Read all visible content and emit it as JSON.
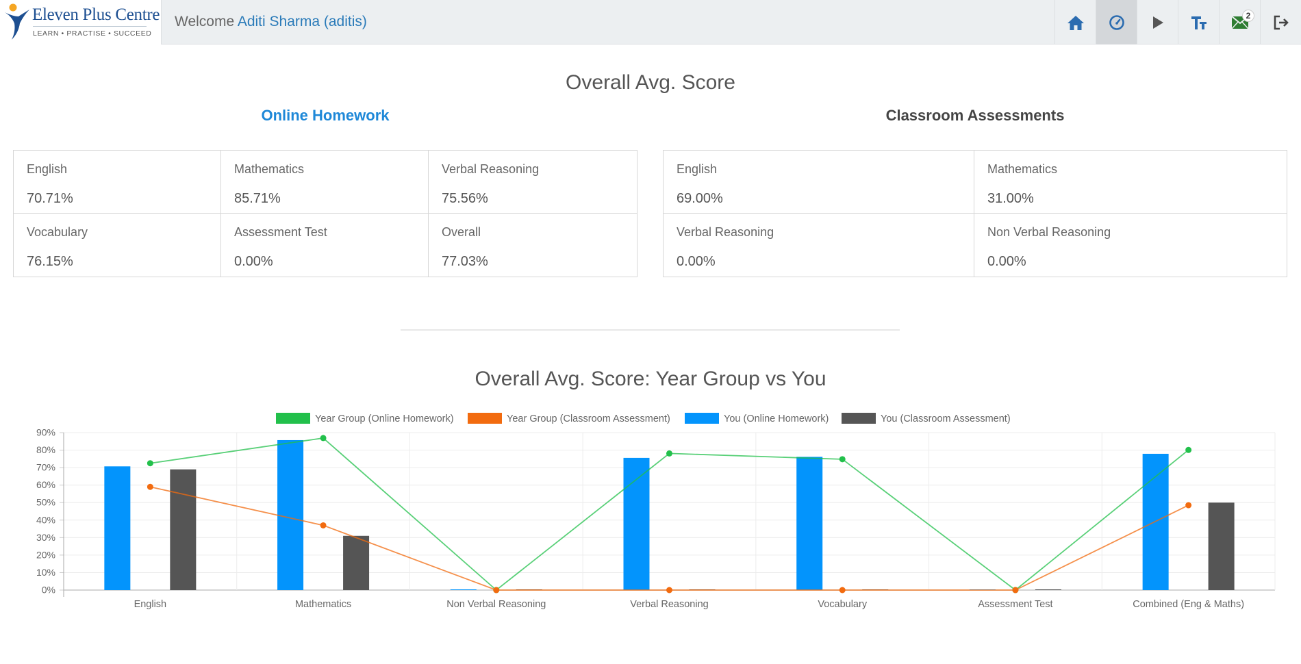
{
  "header": {
    "logo": {
      "name": "Eleven Plus Centre",
      "tagline": "LEARN  •  PRACTISE  •  SUCCEED"
    },
    "welcome_prefix": "Welcome",
    "user_name": "Aditi Sharma (aditis)",
    "nav": [
      {
        "icon": "home-icon",
        "active": false,
        "color": "#2b6cb0"
      },
      {
        "icon": "dashboard-icon",
        "active": true,
        "color": "#2b6cb0"
      },
      {
        "icon": "play-icon",
        "active": false,
        "color": "#555555"
      },
      {
        "icon": "text-size-icon",
        "active": false,
        "color": "#2b6cb0"
      },
      {
        "icon": "mail-icon",
        "active": false,
        "color": "#2e7d32",
        "badge": "2"
      },
      {
        "icon": "logout-icon",
        "active": false,
        "color": "#444444"
      }
    ]
  },
  "scores": {
    "title": "Overall Avg. Score",
    "online": {
      "title": "Online Homework",
      "items": [
        {
          "label": "English",
          "value": "70.71%"
        },
        {
          "label": "Mathematics",
          "value": "85.71%"
        },
        {
          "label": "Verbal Reasoning",
          "value": "75.56%"
        },
        {
          "label": "Vocabulary",
          "value": "76.15%"
        },
        {
          "label": "Assessment Test",
          "value": "0.00%"
        },
        {
          "label": "Overall",
          "value": "77.03%"
        }
      ]
    },
    "classroom": {
      "title": "Classroom Assessments",
      "items": [
        {
          "label": "English",
          "value": "69.00%"
        },
        {
          "label": "Mathematics",
          "value": "31.00%"
        },
        {
          "label": "Verbal Reasoning",
          "value": "0.00%"
        },
        {
          "label": "Non Verbal Reasoning",
          "value": "0.00%"
        }
      ]
    }
  },
  "chart_title": "Overall Avg. Score: Year Group vs You",
  "chart_data": {
    "type": "bar",
    "title": "Overall Avg. Score: Year Group vs You",
    "categories": [
      "English",
      "Mathematics",
      "Non Verbal Reasoning",
      "Verbal Reasoning",
      "Vocabulary",
      "Assessment Test",
      "Combined (Eng & Maths)"
    ],
    "y_ticks": [
      "0%",
      "10%",
      "20%",
      "30%",
      "40%",
      "50%",
      "60%",
      "70%",
      "80%",
      "90%"
    ],
    "ylim": [
      0,
      90
    ],
    "grid": true,
    "legend_position": "top",
    "series": [
      {
        "name": "Year Group (Online Homework)",
        "type": "line",
        "color": "#22c04b",
        "values": [
          72.5,
          86.9,
          0,
          78.1,
          74.8,
          0,
          80.1
        ]
      },
      {
        "name": "Year Group (Classroom Assessment)",
        "type": "line",
        "color": "#f26b0f",
        "values": [
          59,
          37,
          0,
          0,
          0,
          0,
          48.5
        ]
      },
      {
        "name": "You (Online Homework)",
        "type": "bar",
        "color": "#0394fc",
        "values": [
          70.71,
          85.71,
          0,
          75.56,
          76.15,
          0,
          77.9
        ]
      },
      {
        "name": "You (Classroom Assessment)",
        "type": "bar",
        "color": "#555555",
        "values": [
          69,
          31,
          0,
          0,
          0,
          0,
          50
        ]
      }
    ]
  }
}
